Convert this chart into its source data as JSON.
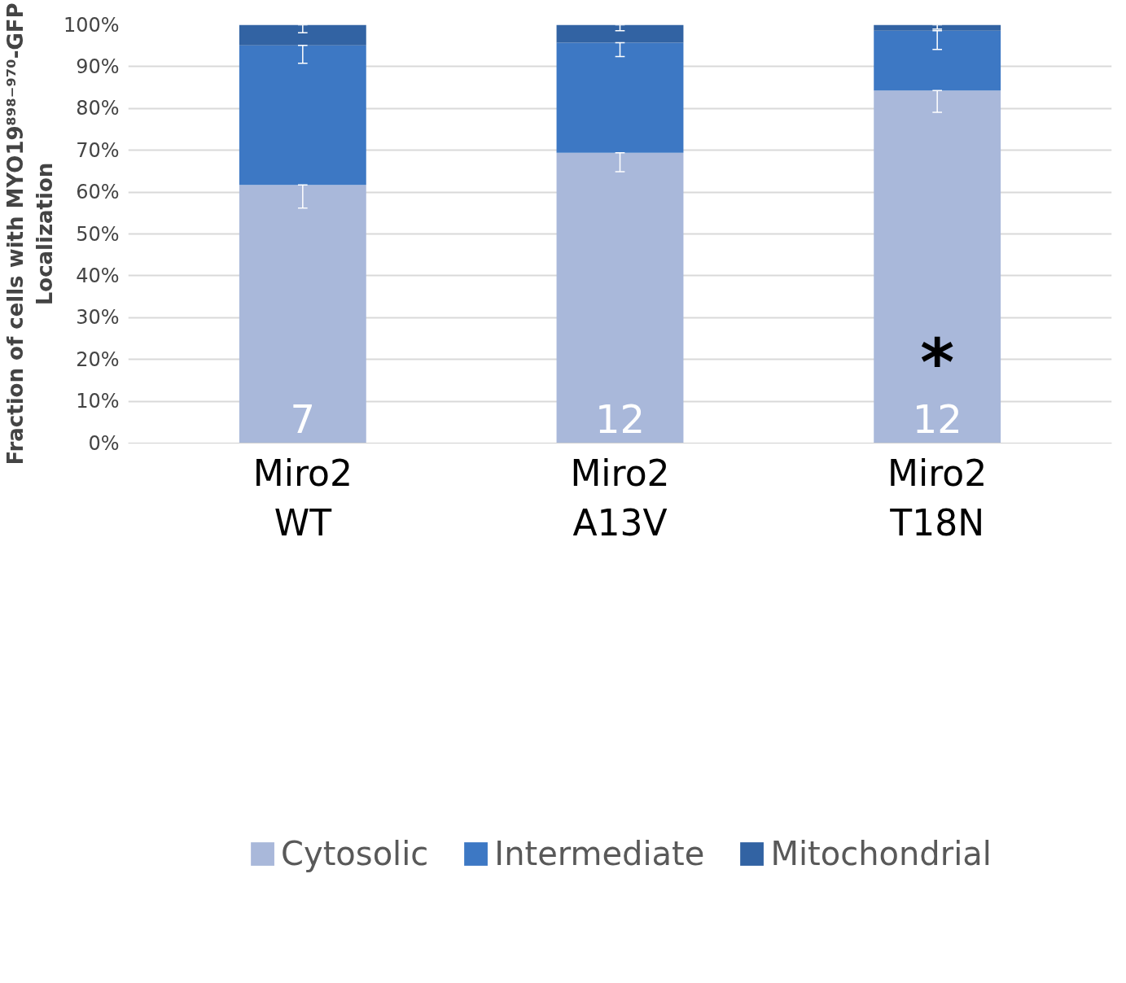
{
  "chart_data": {
    "type": "bar",
    "stacked": true,
    "ylabel": "Fraction of cells with MYO19⁸⁹⁸⁻⁹⁷⁰-GFP\nLocalization",
    "categories": [
      "Miro2\nWT",
      "Miro2\nA13V",
      "Miro2\nT18N"
    ],
    "series": [
      {
        "name": "Cytosolic",
        "color": "#a9b8da",
        "values": [
          61.7,
          69.4,
          84.3
        ],
        "errors": [
          [
            56.2,
            61.7
          ],
          [
            64.9,
            69.4
          ],
          [
            79.1,
            84.3
          ]
        ]
      },
      {
        "name": "Intermediate",
        "color": "#3d78c4",
        "values": [
          33.4,
          26.3,
          14.3
        ],
        "errors": [
          [
            90.8,
            95.1
          ],
          [
            92.4,
            95.7
          ],
          [
            94.1,
            98.6
          ]
        ]
      },
      {
        "name": "Mitochondrial",
        "color": "#3263a3",
        "values": [
          4.9,
          4.3,
          1.4
        ],
        "errors": [
          [
            98.1,
            100
          ],
          [
            98.6,
            100
          ],
          [
            99.0,
            100
          ]
        ]
      }
    ],
    "ylim": [
      0,
      100
    ],
    "yticks": [
      {
        "value": 0,
        "label": "0%"
      },
      {
        "value": 10,
        "label": "10%"
      },
      {
        "value": 20,
        "label": "20%"
      },
      {
        "value": 30,
        "label": "30%"
      },
      {
        "value": 40,
        "label": "40%"
      },
      {
        "value": 50,
        "label": "50%"
      },
      {
        "value": 60,
        "label": "60%"
      },
      {
        "value": 70,
        "label": "70%"
      },
      {
        "value": 80,
        "label": "80%"
      },
      {
        "value": 90,
        "label": "90%"
      },
      {
        "value": 100,
        "label": "100%"
      }
    ],
    "grid": "y",
    "legend": "bottom",
    "annotations": [
      "7",
      "12",
      "12",
      "*"
    ]
  }
}
